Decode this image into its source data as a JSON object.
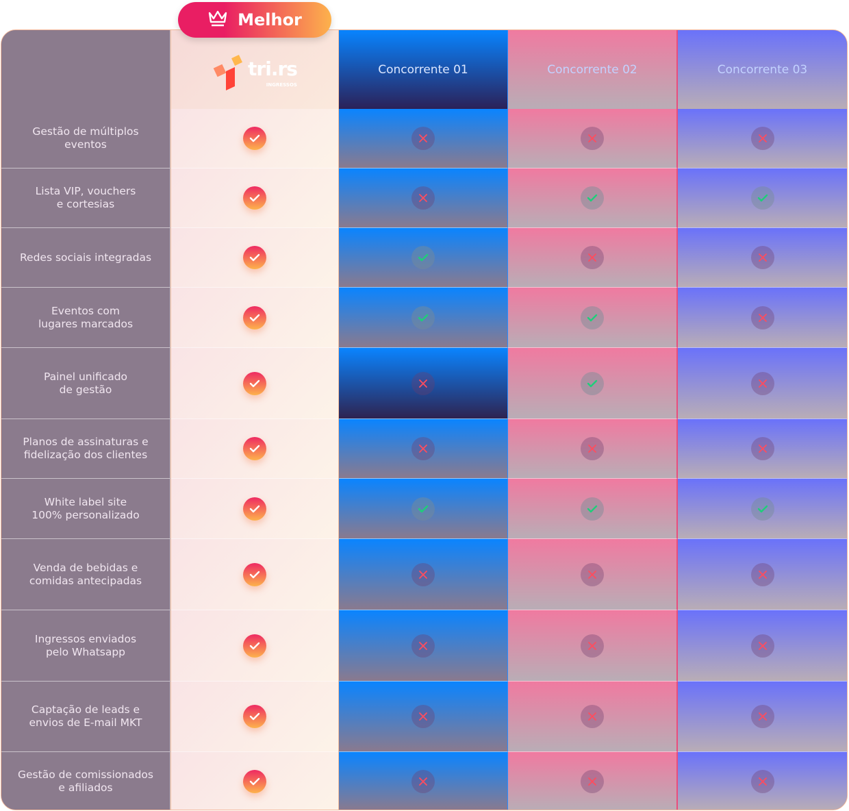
{
  "badge": {
    "label": "Melhor",
    "icon": "crown-icon"
  },
  "brand": {
    "name": "tri.rs",
    "sub": "INGRESSOS"
  },
  "competitors": [
    "Concorrente 01",
    "Concorrente 02",
    "Concorrente 03"
  ],
  "colors": {
    "check_main": "#ee2a62",
    "yes": "#1ecf7a",
    "no": "#ff4d5e"
  },
  "rows": [
    {
      "label": "Gestão de múltiplos\neventos",
      "values": [
        false,
        false,
        false
      ]
    },
    {
      "label": "Lista VIP, vouchers\ne cortesias",
      "values": [
        false,
        true,
        true
      ]
    },
    {
      "label": "Redes sociais integradas",
      "values": [
        true,
        false,
        false
      ]
    },
    {
      "label": "Eventos com\nlugares marcados",
      "values": [
        true,
        true,
        false
      ]
    },
    {
      "label": "Painel unificado\nde gestão",
      "values": [
        false,
        true,
        false
      ]
    },
    {
      "label": "Planos de assinaturas e\nfidelização dos clientes",
      "values": [
        false,
        false,
        false
      ]
    },
    {
      "label": "White label site\n100% personalizado",
      "values": [
        true,
        true,
        true
      ]
    },
    {
      "label": "Venda de bebidas e\ncomidas antecipadas",
      "values": [
        false,
        false,
        false
      ]
    },
    {
      "label": "Ingressos enviados\npelo Whatsapp",
      "values": [
        false,
        false,
        false
      ]
    },
    {
      "label": "Captação de leads e\nenvios de E-mail MKT",
      "values": [
        false,
        false,
        false
      ]
    },
    {
      "label": "Gestão de comissionados\ne afiliados",
      "values": [
        false,
        false,
        false
      ]
    }
  ]
}
